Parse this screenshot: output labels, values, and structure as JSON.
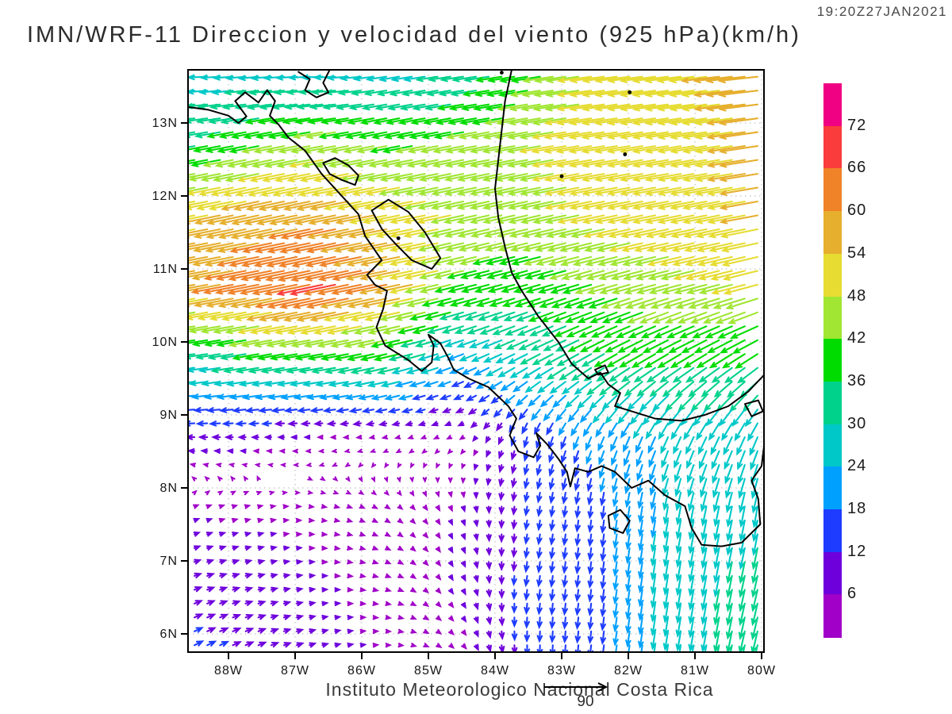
{
  "header": {
    "timestamp": "19:20Z27JAN2021",
    "title": "IMN/WRF-11 Direccion y velocidad del viento (925 hPa)(km/h)"
  },
  "footer": {
    "credit": "Instituto Meteorologico Nacional Costa Rica",
    "reference_value": "90"
  },
  "chart_data": {
    "type": "vector-field-map",
    "title": "IMN/WRF-11 Direccion y velocidad del viento (925 hPa)(km/h)",
    "variable": "wind direction and speed",
    "level": "925 hPa",
    "units": "km/h",
    "valid_time": "19:20Z27JAN2021",
    "lon_range_W": [
      88.61,
      79.96
    ],
    "lat_range_N": [
      5.75,
      13.73
    ],
    "x_ticks": [
      {
        "label": "88W",
        "lon": 88
      },
      {
        "label": "87W",
        "lon": 87
      },
      {
        "label": "86W",
        "lon": 86
      },
      {
        "label": "85W",
        "lon": 85
      },
      {
        "label": "84W",
        "lon": 84
      },
      {
        "label": "83W",
        "lon": 83
      },
      {
        "label": "82W",
        "lon": 82
      },
      {
        "label": "81W",
        "lon": 81
      },
      {
        "label": "80W",
        "lon": 80
      }
    ],
    "y_ticks": [
      {
        "label": "13N",
        "lat": 13
      },
      {
        "label": "12N",
        "lat": 12
      },
      {
        "label": "11N",
        "lat": 11
      },
      {
        "label": "10N",
        "lat": 10
      },
      {
        "label": "9N",
        "lat": 9
      },
      {
        "label": "8N",
        "lat": 8
      },
      {
        "label": "7N",
        "lat": 7
      },
      {
        "label": "6N",
        "lat": 6
      }
    ],
    "grid_lines": {
      "show": true,
      "style": "dotted",
      "color": "#b4b4b4"
    },
    "colorbar": {
      "levels": [
        6,
        12,
        18,
        24,
        30,
        36,
        42,
        48,
        54,
        60,
        66,
        72
      ],
      "colors": [
        "#a000c8",
        "#6e00dc",
        "#1e3cff",
        "#00a0ff",
        "#00c8c8",
        "#00d28c",
        "#00dc00",
        "#a0e632",
        "#e6dc32",
        "#e6af2d",
        "#f08228",
        "#fa3c3c",
        "#f00082"
      ]
    },
    "reference_vector": {
      "value": 90,
      "units": "km/h"
    },
    "wind_grid": {
      "comment": "u eastward, v northward, km/h; rows south-to-north",
      "lons_W": [
        88.5,
        87.5,
        86.5,
        85.5,
        84.5,
        83.5,
        82.5,
        81.5,
        80.5,
        79.5
      ],
      "lats_N": [
        5.75,
        6.75,
        7.75,
        8.75,
        9.75,
        10.75,
        11.75,
        12.75,
        13.75
      ],
      "u": [
        [
          12,
          10,
          7,
          5,
          4,
          0,
          -2,
          -4,
          -6,
          -10
        ],
        [
          9,
          8,
          6,
          5,
          3,
          -2,
          -2,
          -4,
          -6,
          -8
        ],
        [
          5,
          5,
          5,
          4,
          2,
          -2,
          -2,
          -4,
          -6,
          -4
        ],
        [
          -12,
          -9,
          -6,
          -5,
          -4,
          -4,
          -8,
          -10,
          -12,
          -10
        ],
        [
          -30,
          -34,
          -36,
          -34,
          -20,
          -26,
          -30,
          -32,
          -30,
          -30
        ],
        [
          -56,
          -62,
          -66,
          -58,
          -40,
          -36,
          -40,
          -44,
          -46,
          -50
        ],
        [
          -52,
          -56,
          -58,
          -52,
          -46,
          -44,
          -48,
          -50,
          -52,
          -56
        ],
        [
          -34,
          -40,
          -44,
          -40,
          -42,
          -46,
          -50,
          -50,
          -52,
          -58
        ],
        [
          -26,
          -26,
          -28,
          -26,
          -30,
          -38,
          -48,
          -50,
          -55,
          -58
        ]
      ],
      "v": [
        [
          6,
          4,
          2,
          0,
          -4,
          -14,
          -16,
          -26,
          -30,
          -34
        ],
        [
          3,
          2,
          0,
          -2,
          -6,
          -14,
          -16,
          -26,
          -30,
          -30
        ],
        [
          2,
          1,
          -1,
          -3,
          -6,
          -12,
          -16,
          -24,
          -28,
          -30
        ],
        [
          0,
          0,
          0,
          -1,
          -2,
          -14,
          -18,
          -22,
          -24,
          -26
        ],
        [
          -4,
          -6,
          -6,
          -8,
          -8,
          -14,
          -18,
          -20,
          -20,
          -22
        ],
        [
          -10,
          -12,
          -14,
          -12,
          -10,
          -10,
          -12,
          -12,
          -12,
          -14
        ],
        [
          -10,
          -12,
          -12,
          -10,
          -10,
          -10,
          -10,
          -10,
          -10,
          -10
        ],
        [
          -6,
          -8,
          -8,
          -8,
          -8,
          -8,
          -8,
          -8,
          -8,
          -8
        ],
        [
          0,
          -2,
          0,
          -4,
          -4,
          -6,
          -6,
          -6,
          -6,
          -6
        ]
      ]
    },
    "coastlines": [
      [
        [
          88.61,
          13.22
        ],
        [
          88.3,
          13.18
        ],
        [
          88.0,
          13.1
        ],
        [
          87.85,
          13.0
        ],
        [
          87.73,
          13.09
        ],
        [
          87.9,
          13.3
        ],
        [
          87.75,
          13.42
        ],
        [
          87.55,
          13.28
        ],
        [
          87.42,
          13.45
        ],
        [
          87.3,
          13.3
        ],
        [
          87.38,
          13.1
        ],
        [
          87.25,
          12.98
        ],
        [
          87.1,
          12.8
        ],
        [
          86.85,
          12.62
        ],
        [
          86.6,
          12.3
        ],
        [
          86.3,
          12.0
        ],
        [
          86.05,
          11.75
        ],
        [
          85.95,
          11.45
        ],
        [
          85.7,
          11.12
        ],
        [
          85.92,
          10.92
        ],
        [
          85.8,
          10.78
        ],
        [
          85.62,
          10.7
        ],
        [
          85.68,
          10.45
        ],
        [
          85.78,
          10.2
        ],
        [
          85.65,
          9.95
        ],
        [
          85.3,
          9.75
        ],
        [
          85.1,
          9.6
        ],
        [
          84.95,
          9.72
        ],
        [
          84.92,
          9.95
        ],
        [
          85.0,
          10.1
        ],
        [
          84.82,
          9.98
        ],
        [
          84.7,
          9.78
        ],
        [
          84.62,
          9.62
        ],
        [
          84.4,
          9.5
        ],
        [
          84.1,
          9.38
        ],
        [
          83.8,
          9.12
        ],
        [
          83.68,
          8.95
        ],
        [
          83.78,
          8.72
        ],
        [
          83.65,
          8.5
        ],
        [
          83.42,
          8.42
        ],
        [
          83.32,
          8.58
        ],
        [
          83.38,
          8.75
        ],
        [
          83.22,
          8.6
        ],
        [
          83.05,
          8.4
        ],
        [
          82.92,
          8.22
        ],
        [
          82.87,
          8.02
        ],
        [
          82.8,
          8.27
        ],
        [
          82.6,
          8.22
        ],
        [
          82.4,
          8.3
        ],
        [
          82.2,
          8.22
        ],
        [
          81.95,
          8.0
        ],
        [
          81.7,
          8.1
        ],
        [
          81.45,
          7.9
        ],
        [
          81.15,
          7.75
        ],
        [
          81.05,
          7.45
        ],
        [
          80.9,
          7.22
        ],
        [
          80.6,
          7.2
        ],
        [
          80.3,
          7.25
        ],
        [
          80.02,
          7.5
        ],
        [
          80.05,
          7.85
        ],
        [
          80.15,
          8.1
        ],
        [
          80.0,
          8.3
        ],
        [
          79.96,
          8.6
        ]
      ],
      [
        [
          83.75,
          13.73
        ],
        [
          83.85,
          13.3
        ],
        [
          83.9,
          12.9
        ],
        [
          83.95,
          12.5
        ],
        [
          84.0,
          12.1
        ],
        [
          83.95,
          11.7
        ],
        [
          83.85,
          11.3
        ],
        [
          83.75,
          10.95
        ],
        [
          83.6,
          10.7
        ],
        [
          83.35,
          10.35
        ],
        [
          83.05,
          10.0
        ],
        [
          82.85,
          9.7
        ],
        [
          82.6,
          9.5
        ],
        [
          82.42,
          9.58
        ],
        [
          82.3,
          9.42
        ],
        [
          82.12,
          9.3
        ],
        [
          82.2,
          9.12
        ],
        [
          81.95,
          9.05
        ],
        [
          81.6,
          8.95
        ],
        [
          81.2,
          8.92
        ],
        [
          80.85,
          9.0
        ],
        [
          80.5,
          9.12
        ],
        [
          80.2,
          9.32
        ],
        [
          79.96,
          9.55
        ]
      ],
      [
        [
          86.48,
          13.73
        ],
        [
          86.58,
          13.55
        ],
        [
          86.5,
          13.42
        ],
        [
          86.68,
          13.35
        ],
        [
          86.85,
          13.45
        ],
        [
          86.78,
          13.6
        ],
        [
          86.95,
          13.7
        ]
      ],
      [
        [
          86.58,
          12.45
        ],
        [
          86.4,
          12.52
        ],
        [
          86.2,
          12.42
        ],
        [
          86.05,
          12.28
        ],
        [
          86.1,
          12.15
        ],
        [
          86.3,
          12.22
        ],
        [
          86.48,
          12.3
        ],
        [
          86.58,
          12.45
        ]
      ],
      [
        [
          85.85,
          11.8
        ],
        [
          85.6,
          11.95
        ],
        [
          85.3,
          11.78
        ],
        [
          85.05,
          11.5
        ],
        [
          84.82,
          11.15
        ],
        [
          84.95,
          11.0
        ],
        [
          85.25,
          11.12
        ],
        [
          85.5,
          11.35
        ],
        [
          85.7,
          11.55
        ],
        [
          85.85,
          11.8
        ]
      ],
      [
        [
          82.3,
          7.62
        ],
        [
          82.12,
          7.7
        ],
        [
          81.98,
          7.55
        ],
        [
          82.08,
          7.38
        ],
        [
          82.28,
          7.45
        ],
        [
          82.3,
          7.62
        ]
      ],
      [
        [
          80.25,
          9.15
        ],
        [
          80.05,
          9.2
        ],
        [
          79.98,
          9.05
        ],
        [
          80.15,
          8.98
        ],
        [
          80.25,
          9.15
        ]
      ],
      [
        [
          82.5,
          9.62
        ],
        [
          82.35,
          9.68
        ],
        [
          82.3,
          9.58
        ],
        [
          82.45,
          9.55
        ],
        [
          82.5,
          9.62
        ]
      ]
    ],
    "island_dots": [
      {
        "lon": 83.9,
        "lat": 13.69
      },
      {
        "lon": 81.98,
        "lat": 13.42
      },
      {
        "lon": 82.05,
        "lat": 12.57
      },
      {
        "lon": 83.0,
        "lat": 12.27
      },
      {
        "lon": 85.45,
        "lat": 11.42
      }
    ]
  }
}
